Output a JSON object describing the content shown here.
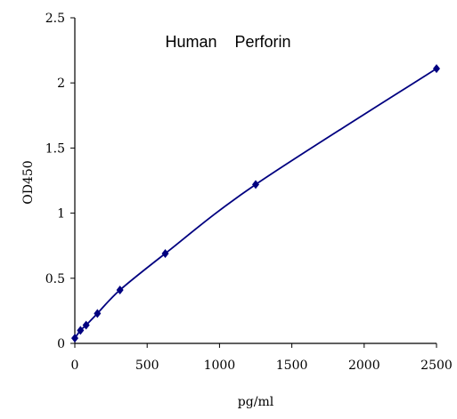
{
  "chart_data": {
    "type": "line",
    "title": "Human    Perforin",
    "xlabel": "pg/ml",
    "ylabel": "OD450",
    "xlim": [
      0,
      2500
    ],
    "ylim": [
      0,
      2.5
    ],
    "xticks": [
      0,
      500,
      1000,
      1500,
      2000,
      2500
    ],
    "xtick_labels": [
      "0",
      "500",
      "1000",
      "1500",
      "2000",
      "2500"
    ],
    "yticks": [
      0,
      0.5,
      1,
      1.5,
      2,
      2.5
    ],
    "ytick_labels": [
      "0",
      "0.5",
      "1",
      "1.5",
      "2",
      "2.5"
    ],
    "grid": false,
    "series": [
      {
        "x": [
          0,
          39,
          78,
          156,
          312,
          625,
          1250,
          2500
        ],
        "y": [
          0.04,
          0.1,
          0.14,
          0.23,
          0.41,
          0.69,
          1.22,
          2.11
        ],
        "color": "#000080",
        "marker": "diamond"
      }
    ]
  }
}
